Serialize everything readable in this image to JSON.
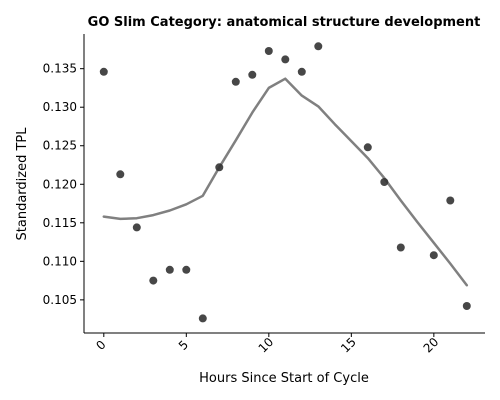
{
  "chart_data": {
    "type": "scatter",
    "title": "GO Slim Category: anatomical structure development",
    "xlabel": "Hours Since Start of Cycle",
    "ylabel": "Standardized TPL",
    "xlim": [
      -1.2,
      23.1
    ],
    "ylim": [
      0.1007,
      0.1395
    ],
    "x_ticks": [
      0,
      5,
      10,
      15,
      20
    ],
    "y_ticks": [
      0.105,
      0.11,
      0.115,
      0.12,
      0.125,
      0.13,
      0.135
    ],
    "y_tick_labels": [
      "0.105",
      "0.110",
      "0.115",
      "0.120",
      "0.125",
      "0.130",
      "0.135"
    ],
    "grid": false,
    "series": [
      {
        "kind": "points",
        "color": "#333333",
        "x": [
          0,
          1,
          2,
          3,
          4,
          5,
          6,
          7,
          8,
          9,
          10,
          11,
          12,
          13,
          16,
          17,
          18,
          20,
          21,
          22
        ],
        "y": [
          0.1346,
          0.1213,
          0.1144,
          0.1075,
          0.1089,
          0.1089,
          0.1026,
          0.1222,
          0.1333,
          0.1342,
          0.1373,
          0.1362,
          0.1346,
          0.1379,
          0.1248,
          0.1203,
          0.1118,
          0.1108,
          0.1179,
          0.1042
        ]
      },
      {
        "kind": "line",
        "color": "#808080",
        "x": [
          0,
          1,
          2,
          3,
          4,
          5,
          6,
          7,
          8,
          9,
          10,
          11,
          12,
          13,
          14,
          15,
          16,
          17,
          18,
          19,
          20,
          21,
          22
        ],
        "y": [
          0.1158,
          0.1155,
          0.1156,
          0.116,
          0.1166,
          0.1174,
          0.1185,
          0.1222,
          0.1257,
          0.1293,
          0.1325,
          0.1337,
          0.1315,
          0.1301,
          0.1278,
          0.1256,
          0.1234,
          0.1208,
          0.1179,
          0.1151,
          0.1124,
          0.1097,
          0.1069
        ]
      }
    ]
  }
}
